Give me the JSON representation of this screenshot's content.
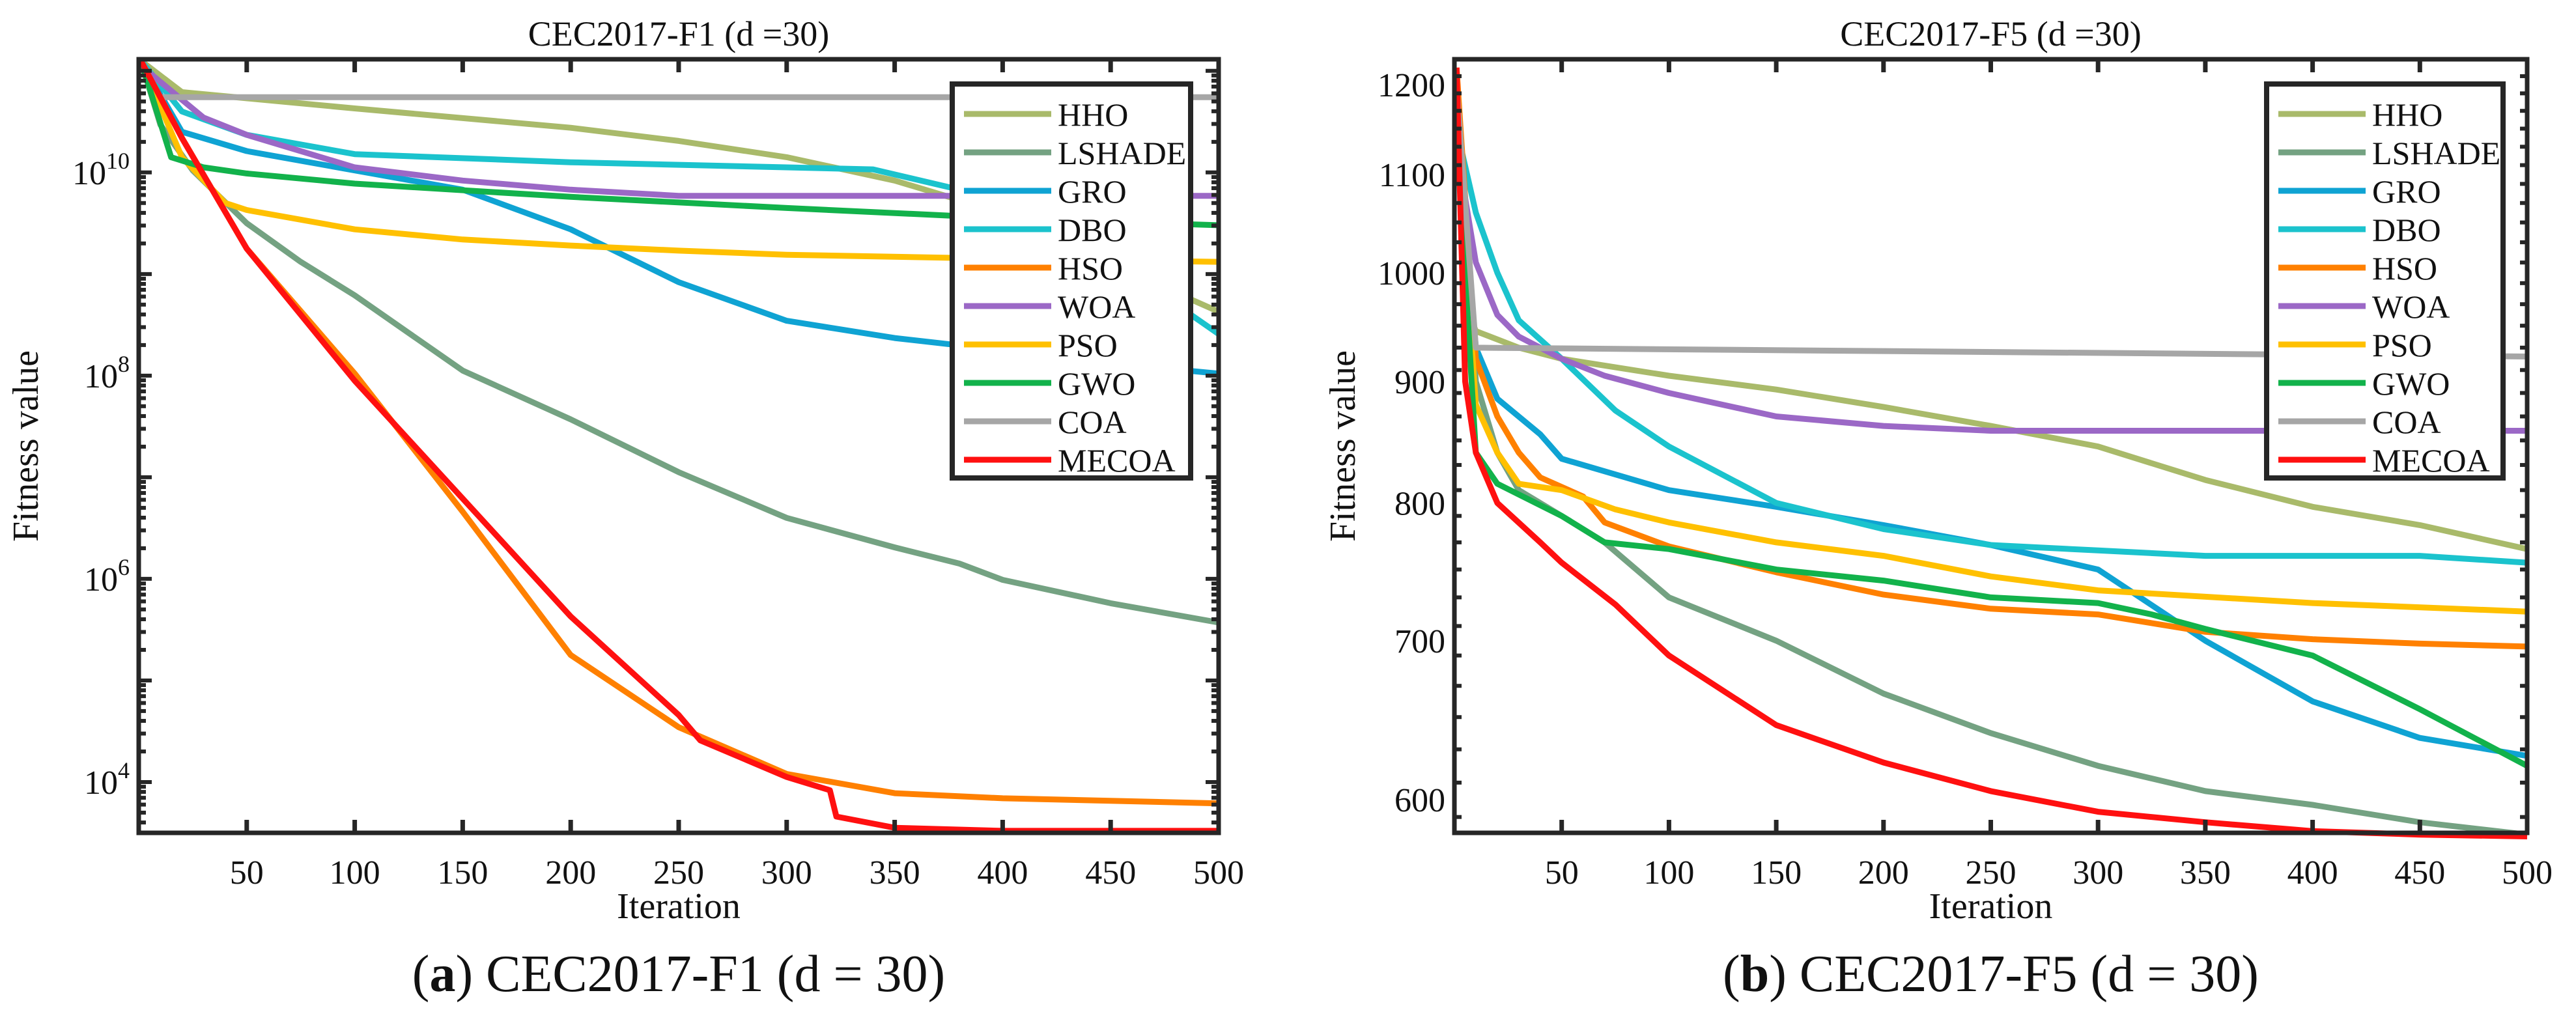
{
  "chart_data": [
    {
      "type": "line",
      "title": "CEC2017-F1 (d =30)",
      "caption_letter": "a",
      "caption_text": " CEC2017-F1 (d = 30)",
      "xlabel": "Iteration",
      "ylabel": "Fitness value",
      "yscale": "log",
      "xlim": [
        0,
        500
      ],
      "ylim": [
        3162,
        130000000000.0
      ],
      "xticks": [
        "50",
        "100",
        "150",
        "200",
        "250",
        "300",
        "350",
        "400",
        "450",
        "500"
      ],
      "yticks": [
        {
          "base": "10",
          "exp": "4",
          "value": 10000.0
        },
        {
          "base": "10",
          "exp": "6",
          "value": 1000000.0
        },
        {
          "base": "10",
          "exp": "8",
          "value": 100000000.0
        },
        {
          "base": "10",
          "exp": "10",
          "value": 10000000000.0
        }
      ],
      "legend_position": "top-right",
      "series": [
        {
          "name": "HHO",
          "color": "#a9ba6a",
          "x": [
            1,
            20,
            100,
            200,
            250,
            300,
            350,
            400,
            450,
            500
          ],
          "log10y": [
            11.1,
            10.79,
            10.63,
            10.44,
            10.31,
            10.15,
            9.92,
            9.6,
            9.1,
            8.63
          ]
        },
        {
          "name": "LSHADE",
          "color": "#74a282",
          "x": [
            1,
            10,
            25,
            50,
            75,
            100,
            150,
            200,
            250,
            300,
            350,
            380,
            400,
            450,
            500
          ],
          "log10y": [
            11.1,
            10.47,
            10.02,
            9.5,
            9.12,
            8.79,
            8.05,
            7.57,
            7.05,
            6.6,
            6.31,
            6.15,
            5.99,
            5.76,
            5.57
          ]
        },
        {
          "name": "GRO",
          "color": "#0fa3d3",
          "x": [
            1,
            20,
            50,
            100,
            150,
            200,
            250,
            300,
            350,
            400,
            450,
            500
          ],
          "log10y": [
            11.1,
            10.4,
            10.21,
            10.02,
            9.83,
            9.44,
            8.92,
            8.54,
            8.37,
            8.25,
            8.12,
            8.02
          ]
        },
        {
          "name": "DBO",
          "color": "#1bc3cd",
          "x": [
            1,
            20,
            50,
            100,
            200,
            300,
            340,
            380,
            420,
            460,
            500
          ],
          "log10y": [
            11.1,
            10.6,
            10.37,
            10.18,
            10.1,
            10.05,
            10.03,
            9.83,
            9.5,
            9.0,
            8.41
          ]
        },
        {
          "name": "HSO",
          "color": "#ff8000",
          "x": [
            1,
            20,
            50,
            100,
            150,
            200,
            250,
            300,
            350,
            400,
            500
          ],
          "log10y": [
            11.1,
            10.34,
            9.25,
            8.02,
            6.66,
            5.25,
            4.54,
            4.08,
            3.89,
            3.84,
            3.79
          ]
        },
        {
          "name": "WOA",
          "color": "#9b68c6",
          "x": [
            1,
            30,
            50,
            100,
            150,
            200,
            250,
            500
          ],
          "log10y": [
            11.05,
            10.54,
            10.37,
            10.05,
            9.92,
            9.83,
            9.77,
            9.77
          ]
        },
        {
          "name": "PSO",
          "color": "#ffc000",
          "x": [
            1,
            20,
            40,
            50,
            100,
            150,
            200,
            250,
            300,
            400,
            500
          ],
          "log10y": [
            11.1,
            10.15,
            9.7,
            9.63,
            9.44,
            9.34,
            9.28,
            9.23,
            9.19,
            9.15,
            9.12
          ]
        },
        {
          "name": "GWO",
          "color": "#12b24b",
          "x": [
            1,
            15,
            30,
            50,
            100,
            200,
            300,
            400,
            500
          ],
          "log10y": [
            11.1,
            10.15,
            10.05,
            9.99,
            9.89,
            9.76,
            9.65,
            9.55,
            9.48
          ]
        },
        {
          "name": "COA",
          "color": "#a6a6a6",
          "x": [
            1,
            10,
            500
          ],
          "log10y": [
            11.1,
            10.74,
            10.74
          ]
        },
        {
          "name": "MECOA",
          "color": "#ff1010",
          "x": [
            1,
            20,
            50,
            100,
            150,
            200,
            250,
            260,
            300,
            320,
            323,
            350,
            400,
            500
          ],
          "log10y": [
            11.1,
            10.34,
            9.25,
            7.95,
            6.79,
            5.63,
            4.66,
            4.41,
            4.05,
            3.92,
            3.66,
            3.55,
            3.52,
            3.52
          ]
        }
      ]
    },
    {
      "type": "line",
      "title": "CEC2017-F5 (d =30)",
      "caption_letter": "b",
      "caption_text": " CEC2017-F5 (d = 30)",
      "xlabel": "Iteration",
      "ylabel": "Fitness value",
      "yscale": "log",
      "xlim": [
        0,
        500
      ],
      "ylim": [
        581,
        1230
      ],
      "xticks": [
        "50",
        "100",
        "150",
        "200",
        "250",
        "300",
        "350",
        "400",
        "450",
        "500"
      ],
      "yticks": [
        {
          "base": "600",
          "value": 600
        },
        {
          "base": "700",
          "value": 700
        },
        {
          "base": "800",
          "value": 800
        },
        {
          "base": "900",
          "value": 900
        },
        {
          "base": "1000",
          "value": 1000
        },
        {
          "base": "1100",
          "value": 1100
        },
        {
          "base": "1200",
          "value": 1200
        }
      ],
      "legend_position": "top-right",
      "series": [
        {
          "name": "HHO",
          "color": "#a9ba6a",
          "x": [
            1,
            5,
            10,
            30,
            50,
            100,
            150,
            200,
            250,
            300,
            350,
            400,
            450,
            500
          ],
          "y": [
            1200,
            970,
            945,
            930,
            920,
            905,
            893,
            878,
            862,
            845,
            818,
            797,
            783,
            765
          ]
        },
        {
          "name": "LSHADE",
          "color": "#74a282",
          "x": [
            1,
            10,
            20,
            30,
            50,
            70,
            100,
            150,
            200,
            250,
            300,
            350,
            400,
            450,
            500
          ],
          "y": [
            1200,
            900,
            840,
            810,
            790,
            770,
            730,
            700,
            665,
            640,
            620,
            605,
            597,
            587,
            580
          ]
        },
        {
          "name": "GRO",
          "color": "#0fa3d3",
          "x": [
            1,
            10,
            20,
            40,
            50,
            100,
            150,
            200,
            250,
            300,
            350,
            400,
            450,
            500
          ],
          "y": [
            1150,
            930,
            885,
            855,
            835,
            810,
            797,
            783,
            768,
            750,
            700,
            660,
            637,
            626
          ]
        },
        {
          "name": "DBO",
          "color": "#1bc3cd",
          "x": [
            1,
            10,
            20,
            30,
            50,
            75,
            100,
            150,
            200,
            250,
            300,
            350,
            400,
            450,
            500
          ],
          "y": [
            1150,
            1060,
            1000,
            955,
            920,
            875,
            845,
            800,
            780,
            768,
            764,
            760,
            760,
            760,
            755
          ]
        },
        {
          "name": "HSO",
          "color": "#ff8000",
          "x": [
            1,
            10,
            20,
            30,
            40,
            60,
            70,
            100,
            150,
            200,
            250,
            300,
            350,
            400,
            450,
            500
          ],
          "y": [
            1220,
            920,
            870,
            840,
            820,
            805,
            785,
            767,
            748,
            732,
            722,
            718,
            706,
            701,
            698,
            696
          ]
        },
        {
          "name": "WOA",
          "color": "#9b68c6",
          "x": [
            1,
            10,
            20,
            30,
            50,
            70,
            100,
            150,
            200,
            250,
            500
          ],
          "y": [
            1130,
            1010,
            960,
            940,
            920,
            905,
            890,
            870,
            862,
            858,
            858
          ]
        },
        {
          "name": "PSO",
          "color": "#ffc000",
          "x": [
            1,
            10,
            20,
            30,
            50,
            75,
            100,
            150,
            200,
            250,
            300,
            400,
            500
          ],
          "y": [
            1150,
            880,
            840,
            815,
            810,
            795,
            785,
            770,
            760,
            745,
            735,
            726,
            720
          ]
        },
        {
          "name": "GWO",
          "color": "#12b24b",
          "x": [
            1,
            10,
            20,
            50,
            70,
            100,
            150,
            200,
            250,
            300,
            325,
            350,
            400,
            450,
            500
          ],
          "y": [
            1150,
            840,
            815,
            790,
            770,
            765,
            750,
            742,
            730,
            726,
            718,
            708,
            690,
            655,
            620
          ]
        },
        {
          "name": "COA",
          "color": "#a6a6a6",
          "x": [
            1,
            10,
            500
          ],
          "y": [
            1200,
            930,
            922
          ]
        },
        {
          "name": "MECOA",
          "color": "#ff1010",
          "x": [
            1,
            5,
            10,
            20,
            40,
            50,
            75,
            100,
            150,
            200,
            250,
            300,
            350,
            400,
            450,
            500
          ],
          "y": [
            1220,
            900,
            840,
            800,
            770,
            755,
            725,
            690,
            645,
            622,
            605,
            593,
            587,
            582,
            580,
            579
          ]
        }
      ]
    }
  ]
}
